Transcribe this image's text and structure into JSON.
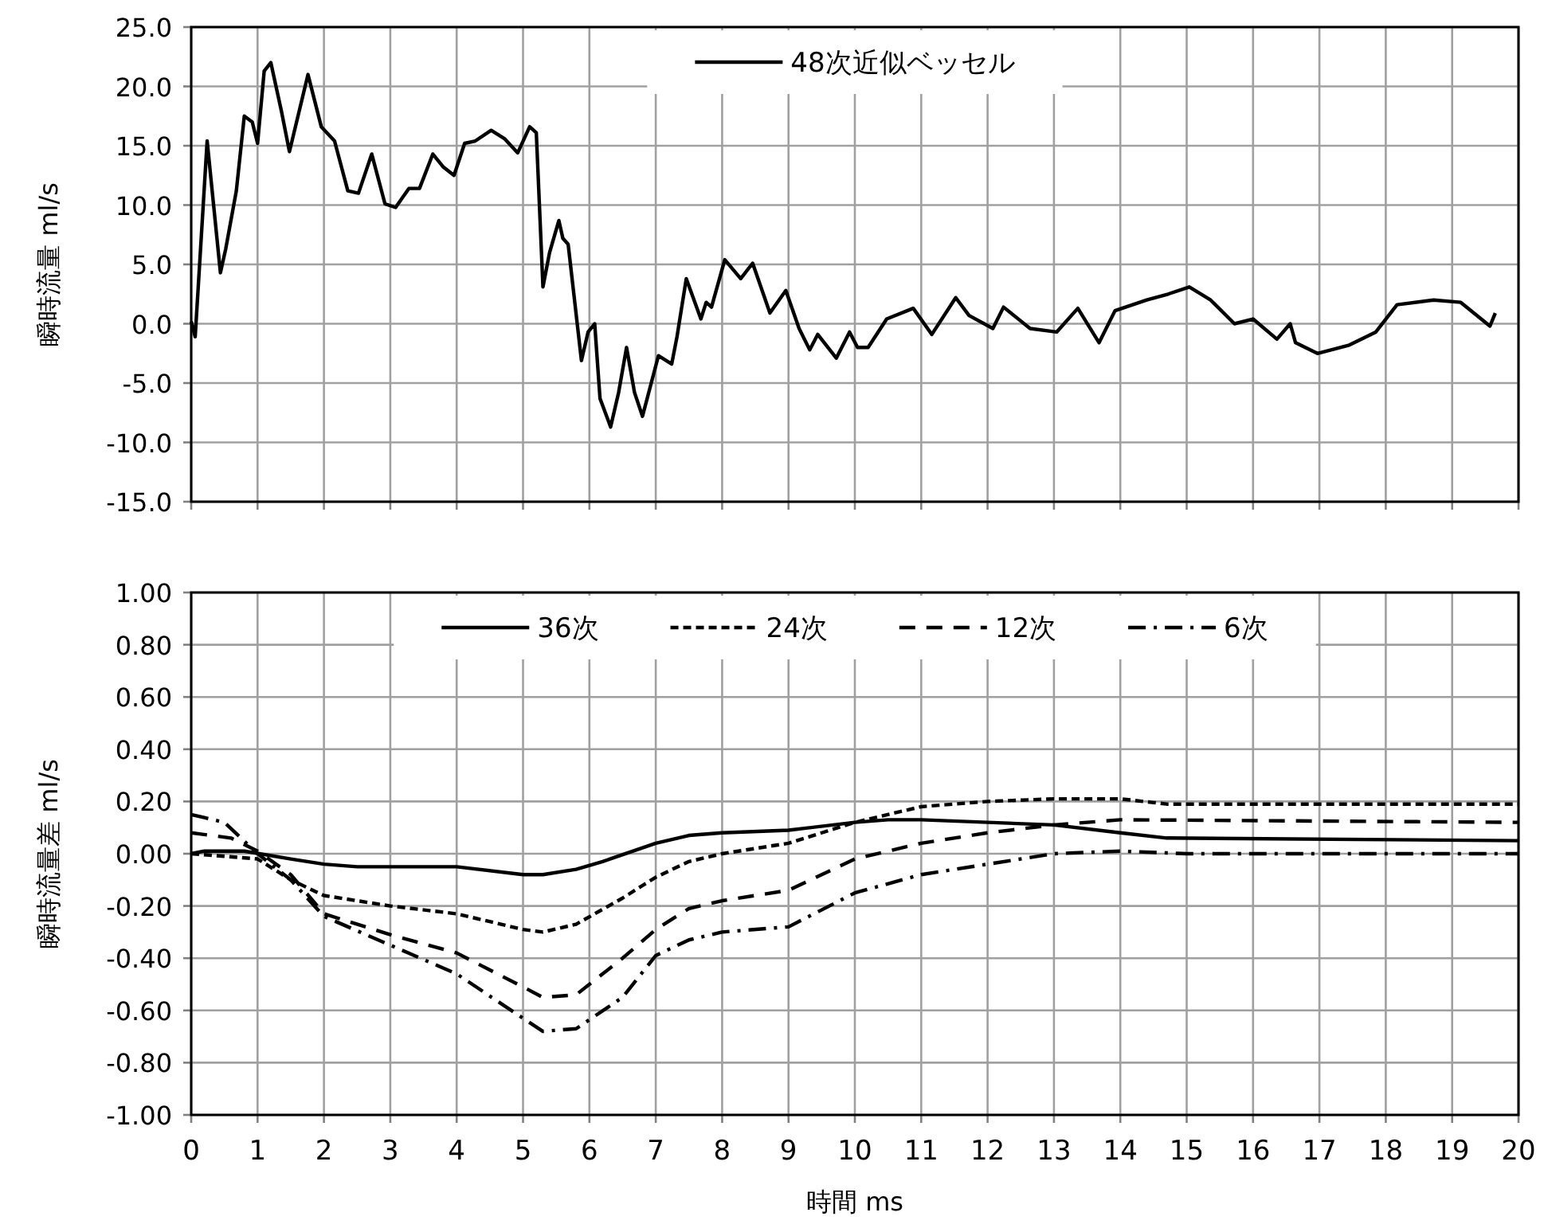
{
  "chart_data": [
    {
      "type": "line",
      "ylabel": "瞬時流量 ml/s",
      "xlim": [
        0,
        20
      ],
      "xticks": [
        0,
        1,
        2,
        3,
        4,
        5,
        6,
        7,
        8,
        9,
        10,
        11,
        12,
        13,
        14,
        15,
        16,
        17,
        18,
        19,
        20
      ],
      "ylim": [
        -15,
        25
      ],
      "yticks": [
        {
          "value": -15,
          "label": "-15.0"
        },
        {
          "value": -10,
          "label": "-10.0"
        },
        {
          "value": -5,
          "label": "-5.0"
        },
        {
          "value": 0,
          "label": "0.0"
        },
        {
          "value": 5,
          "label": "5.0"
        },
        {
          "value": 10,
          "label": "10.0"
        },
        {
          "value": 15,
          "label": "15.0"
        },
        {
          "value": 20,
          "label": "20.0"
        },
        {
          "value": 25,
          "label": "25.0"
        }
      ],
      "tick_labels": "y",
      "grid": true,
      "legend": "top",
      "series": [
        {
          "name": "48次近似ベッセル",
          "color": "#000000",
          "line_style": "solid",
          "x": [
            0,
            0.06,
            0.24,
            0.44,
            0.52,
            0.68,
            0.8,
            0.92,
            1.0,
            1.1,
            1.2,
            1.36,
            1.48,
            1.76,
            1.96,
            2.16,
            2.36,
            2.52,
            2.72,
            2.92,
            3.08,
            3.28,
            3.44,
            3.64,
            3.8,
            3.96,
            4.12,
            4.28,
            4.52,
            4.72,
            4.92,
            5.1,
            5.2,
            5.3,
            5.4,
            5.54,
            5.6,
            5.68,
            5.88,
            5.98,
            6.08,
            6.16,
            6.32,
            6.44,
            6.56,
            6.68,
            6.8,
            7.04,
            7.24,
            7.32,
            7.46,
            7.68,
            7.76,
            7.84,
            8.04,
            8.28,
            8.46,
            8.72,
            8.96,
            9.16,
            9.32,
            9.44,
            9.72,
            9.92,
            10.04,
            10.2,
            10.48,
            10.88,
            11.16,
            11.52,
            11.72,
            12.08,
            12.24,
            12.64,
            13.04,
            13.36,
            13.68,
            13.92,
            14.4,
            14.72,
            15.04,
            15.36,
            15.72,
            16.0,
            16.36,
            16.56,
            16.64,
            16.97,
            17.45,
            17.85,
            18.17,
            18.72,
            19.13,
            19.57,
            19.65
          ],
          "values": [
            0.2,
            -1.1,
            15.4,
            4.3,
            6.3,
            11.2,
            17.5,
            17.0,
            15.2,
            21.3,
            22.0,
            17.9,
            14.5,
            21.0,
            16.6,
            15.4,
            11.2,
            11.0,
            14.3,
            10.1,
            9.8,
            11.4,
            11.4,
            14.3,
            13.2,
            12.5,
            15.2,
            15.4,
            16.3,
            15.6,
            14.4,
            16.6,
            16.1,
            3.1,
            6.0,
            8.7,
            7.2,
            6.7,
            -3.1,
            -0.7,
            0.0,
            -6.3,
            -8.7,
            -5.8,
            -2.0,
            -5.8,
            -7.8,
            -2.7,
            -3.4,
            -1.1,
            3.8,
            0.4,
            1.8,
            1.4,
            5.4,
            3.8,
            5.1,
            0.9,
            2.8,
            -0.4,
            -2.2,
            -0.9,
            -2.9,
            -0.7,
            -2.0,
            -2.0,
            0.4,
            1.3,
            -0.9,
            2.2,
            0.7,
            -0.4,
            1.4,
            -0.4,
            -0.7,
            1.3,
            -1.6,
            1.1,
            2.0,
            2.5,
            3.1,
            2.0,
            0.0,
            0.4,
            -1.3,
            0.0,
            -1.6,
            -2.5,
            -1.8,
            -0.7,
            1.6,
            2.0,
            1.8,
            -0.2,
            0.9
          ]
        }
      ]
    },
    {
      "type": "line",
      "xlabel": "時間 ms",
      "ylabel": "瞬時流量差  ml/s",
      "xlim": [
        0,
        20
      ],
      "xticks": [
        0,
        1,
        2,
        3,
        4,
        5,
        6,
        7,
        8,
        9,
        10,
        11,
        12,
        13,
        14,
        15,
        16,
        17,
        18,
        19,
        20
      ],
      "ylim": [
        -1,
        1
      ],
      "yticks": [
        {
          "value": -1,
          "label": "-1.00"
        },
        {
          "value": -0.8,
          "label": "-0.80"
        },
        {
          "value": -0.6,
          "label": "-0.60"
        },
        {
          "value": -0.4,
          "label": "-0.40"
        },
        {
          "value": -0.2,
          "label": "-0.20"
        },
        {
          "value": 0,
          "label": "0.00"
        },
        {
          "value": 0.2,
          "label": "0.20"
        },
        {
          "value": 0.4,
          "label": "0.40"
        },
        {
          "value": 0.6,
          "label": "0.60"
        },
        {
          "value": 0.8,
          "label": "0.80"
        },
        {
          "value": 1,
          "label": "1.00"
        }
      ],
      "grid": true,
      "legend": "top",
      "series": [
        {
          "name": "36次",
          "color": "#000000",
          "line_style": "solid",
          "x": [
            0,
            0.2,
            0.8,
            1.5,
            2,
            2.5,
            3,
            4,
            5,
            5.3,
            5.8,
            6.2,
            7,
            7.5,
            8,
            9,
            10,
            10.5,
            11,
            12,
            13,
            14,
            14.7,
            20
          ],
          "values": [
            0.0,
            0.01,
            0.01,
            -0.02,
            -0.04,
            -0.05,
            -0.05,
            -0.05,
            -0.08,
            -0.08,
            -0.06,
            -0.03,
            0.04,
            0.07,
            0.08,
            0.09,
            0.12,
            0.13,
            0.13,
            0.12,
            0.11,
            0.08,
            0.06,
            0.05
          ]
        },
        {
          "name": "24次",
          "color": "#000000",
          "line_style": "dotted",
          "x": [
            0,
            1,
            1.5,
            2,
            3,
            4,
            5,
            5.3,
            5.8,
            6.5,
            7,
            7.5,
            8,
            9,
            10,
            11,
            12,
            13,
            14,
            14.7,
            20
          ],
          "values": [
            0.0,
            -0.02,
            -0.1,
            -0.16,
            -0.2,
            -0.23,
            -0.29,
            -0.3,
            -0.27,
            -0.17,
            -0.09,
            -0.03,
            0.0,
            0.04,
            0.12,
            0.18,
            0.2,
            0.21,
            0.21,
            0.19,
            0.19
          ]
        },
        {
          "name": "12次",
          "color": "#000000",
          "line_style": "dashed",
          "x": [
            0,
            0.6,
            1,
            1.5,
            2,
            3,
            4,
            5,
            5.3,
            5.8,
            6.5,
            7,
            7.5,
            8,
            9,
            10,
            11,
            12,
            13,
            14,
            20
          ],
          "values": [
            0.08,
            0.06,
            0.01,
            -0.08,
            -0.23,
            -0.31,
            -0.38,
            -0.51,
            -0.55,
            -0.54,
            -0.4,
            -0.29,
            -0.21,
            -0.18,
            -0.14,
            -0.02,
            0.04,
            0.08,
            0.11,
            0.13,
            0.12
          ]
        },
        {
          "name": "6次",
          "color": "#000000",
          "line_style": "dashdot",
          "x": [
            0,
            0.5,
            1,
            1.5,
            2,
            3,
            4,
            5,
            5.3,
            5.8,
            6.5,
            7,
            7.5,
            8,
            9,
            10,
            11,
            12,
            13,
            14,
            15,
            20
          ],
          "values": [
            0.15,
            0.12,
            0.0,
            -0.1,
            -0.24,
            -0.35,
            -0.46,
            -0.63,
            -0.68,
            -0.67,
            -0.55,
            -0.39,
            -0.33,
            -0.3,
            -0.28,
            -0.15,
            -0.08,
            -0.04,
            0.0,
            0.01,
            0.0,
            0.0
          ]
        }
      ]
    }
  ]
}
